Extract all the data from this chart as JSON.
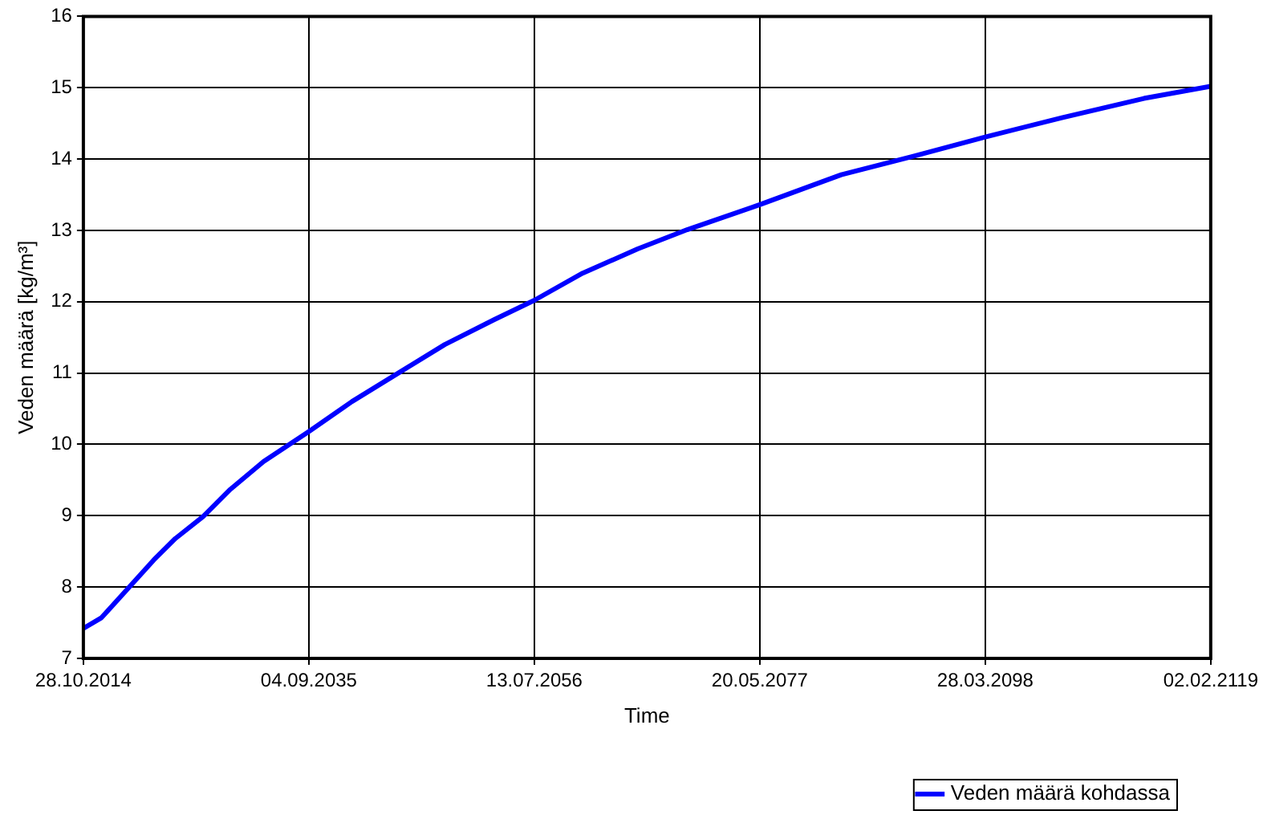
{
  "chart_data": {
    "type": "line",
    "xlabel": "Time",
    "ylabel": "Veden määrä [kg/m³]",
    "x": [
      "2014-10-28",
      "2016-07",
      "2019-04",
      "2021-05",
      "2023-05",
      "2025-12",
      "2028-06",
      "2031-07",
      "2035-09-04",
      "2039-09",
      "2044-03",
      "2048-04",
      "2052-11",
      "2056-07-13",
      "2061-01",
      "2066-02",
      "2070-09",
      "2077-05-20",
      "2084-12",
      "2091-08",
      "2098-03-28",
      "2105-05",
      "2112-12",
      "2119-02-02"
    ],
    "series": [
      {
        "name": "Veden määrä kohdassa",
        "color": "#0000ff",
        "values": [
          7.42,
          7.57,
          8.03,
          8.38,
          8.68,
          8.99,
          9.37,
          9.76,
          10.18,
          10.6,
          11.02,
          11.4,
          11.75,
          12.02,
          12.4,
          12.74,
          13.01,
          13.36,
          13.78,
          14.04,
          14.31,
          14.58,
          14.85,
          15.02
        ]
      }
    ],
    "xlim": [
      "2014-10-28",
      "2119-02-02"
    ],
    "xticks": [
      {
        "value": "2014-10-28",
        "label": "28.10.2014"
      },
      {
        "value": "2035-09-04",
        "label": "04.09.2035"
      },
      {
        "value": "2056-07-13",
        "label": "13.07.2056"
      },
      {
        "value": "2077-05-20",
        "label": "20.05.2077"
      },
      {
        "value": "2098-03-28",
        "label": "28.03.2098"
      },
      {
        "value": "2119-02-02",
        "label": "02.02.2119"
      }
    ],
    "ylim": [
      7,
      16
    ],
    "yticks": [
      7,
      8,
      9,
      10,
      11,
      12,
      13,
      14,
      15,
      16
    ],
    "grid": true,
    "legend": "bottom right",
    "marker": "none",
    "line_style": "solid"
  }
}
